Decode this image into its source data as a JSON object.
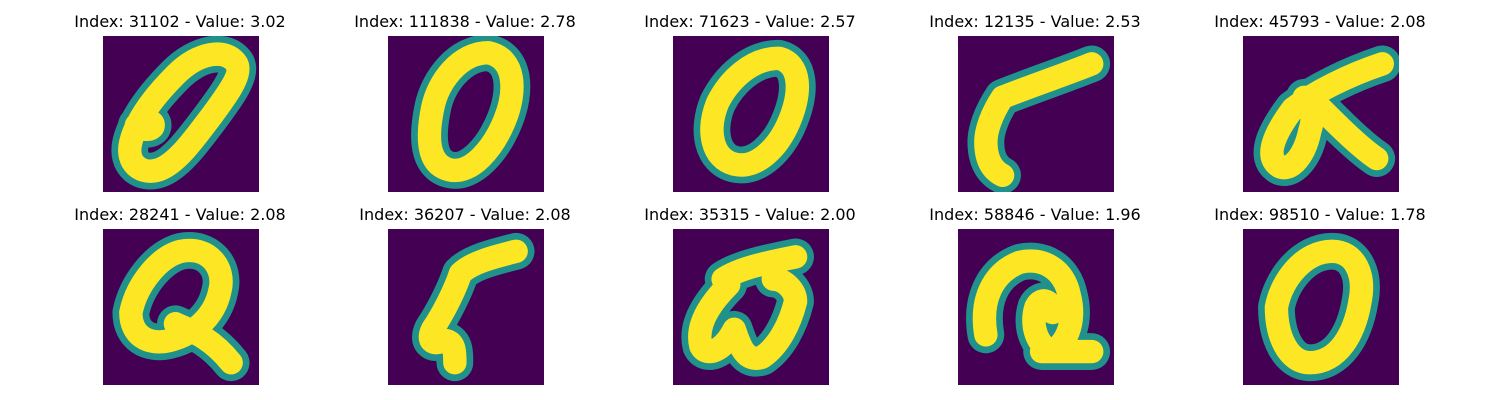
{
  "colors": {
    "background": "#440154",
    "edge": "#21918c",
    "stroke": "#fde725"
  },
  "panels": [
    {
      "title": "Index: 31102 - Value: 3.02"
    },
    {
      "title": "Index: 111838 - Value: 2.78"
    },
    {
      "title": "Index: 71623 - Value: 2.57"
    },
    {
      "title": "Index: 12135 - Value: 2.53"
    },
    {
      "title": "Index: 45793 - Value: 2.08"
    },
    {
      "title": "Index: 28241 - Value: 2.08"
    },
    {
      "title": "Index: 36207 - Value: 2.08"
    },
    {
      "title": "Index: 35315 - Value: 2.00"
    },
    {
      "title": "Index: 58846 - Value: 1.96"
    },
    {
      "title": "Index: 98510 - Value: 1.78"
    }
  ]
}
